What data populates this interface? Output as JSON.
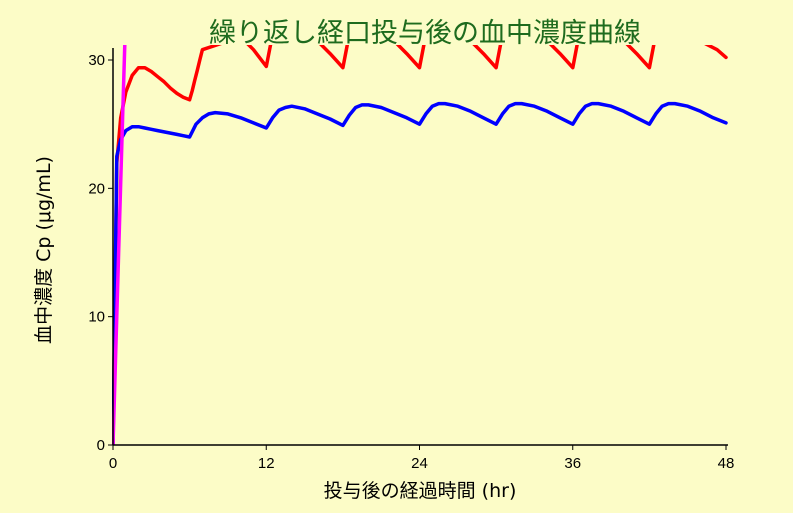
{
  "chart_data": {
    "type": "line",
    "title": "繰り返し経口投与後の血中濃度曲線",
    "xlabel": "投与後の経過時間 (hr)",
    "ylabel": "血中濃度 Cp (μg/mL)",
    "xlim": [
      0,
      48
    ],
    "ylim": [
      0,
      30
    ],
    "x_ticks": [
      "0",
      "12",
      "24",
      "36",
      "48"
    ],
    "y_ticks": [
      "0",
      "10",
      "20",
      "30"
    ],
    "grid": false,
    "series": [
      {
        "color": "#ff0000",
        "x": [
          0,
          0.3,
          0.6,
          1.0,
          1.5,
          2.0,
          2.5,
          3.0,
          3.5,
          4.0,
          4.5,
          5.0,
          5.5,
          6.0,
          6.2,
          6.4,
          6.6,
          6.8,
          7.0,
          10.0,
          11.0,
          12.0,
          12.5,
          13.0,
          16.0,
          17.0,
          18.0,
          18.5,
          19.0,
          22.0,
          23.0,
          24.0,
          24.5,
          25.0,
          28.0,
          29.0,
          30.0,
          30.5,
          31.0,
          34.0,
          35.0,
          36.0,
          36.5,
          37.0,
          40.0,
          41.0,
          42.0,
          42.5,
          43.0,
          47.3,
          48.0
        ],
        "y": [
          0,
          22.0,
          25.5,
          27.5,
          28.8,
          29.4,
          29.4,
          29.1,
          28.7,
          28.3,
          27.8,
          27.4,
          27.1,
          26.9,
          27.6,
          28.4,
          29.2,
          30.0,
          30.8,
          31.8,
          30.8,
          29.5,
          32.0,
          33.0,
          31.5,
          30.5,
          29.4,
          32.0,
          33.0,
          31.5,
          30.5,
          29.4,
          32.0,
          33.0,
          31.5,
          30.5,
          29.4,
          32.0,
          33.0,
          31.5,
          30.5,
          29.4,
          32.0,
          33.0,
          31.5,
          30.5,
          29.4,
          32.0,
          33.0,
          30.8,
          30.2
        ]
      },
      {
        "color": "#0000ff",
        "x": [
          0,
          0.3,
          0.6,
          1.0,
          1.5,
          2.0,
          2.5,
          3.0,
          3.5,
          4.0,
          4.5,
          5.0,
          5.5,
          6.0,
          6.5,
          7.0,
          7.5,
          8.0,
          9.0,
          10.0,
          11.0,
          12.0,
          12.5,
          13.0,
          13.5,
          14.0,
          15.0,
          16.0,
          17.0,
          18.0,
          18.5,
          19.0,
          19.5,
          20.0,
          21.0,
          22.0,
          23.0,
          24.0,
          24.5,
          25.0,
          25.5,
          26.0,
          27.0,
          28.0,
          29.0,
          30.0,
          30.5,
          31.0,
          31.5,
          32.0,
          33.0,
          34.0,
          35.0,
          36.0,
          36.5,
          37.0,
          37.5,
          38.0,
          39.0,
          40.0,
          41.0,
          42.0,
          42.5,
          43.0,
          43.5,
          44.0,
          45.0,
          46.0,
          47.0,
          48.0
        ],
        "y": [
          0,
          22.5,
          23.8,
          24.5,
          24.8,
          24.8,
          24.7,
          24.6,
          24.5,
          24.4,
          24.3,
          24.2,
          24.1,
          24.0,
          25.0,
          25.5,
          25.8,
          25.9,
          25.8,
          25.5,
          25.1,
          24.7,
          25.5,
          26.1,
          26.3,
          26.4,
          26.2,
          25.8,
          25.4,
          24.9,
          25.7,
          26.3,
          26.5,
          26.5,
          26.3,
          25.9,
          25.5,
          25.0,
          25.8,
          26.4,
          26.6,
          26.6,
          26.4,
          26.0,
          25.5,
          25.0,
          25.8,
          26.4,
          26.6,
          26.6,
          26.4,
          26.0,
          25.5,
          25.0,
          25.8,
          26.4,
          26.6,
          26.6,
          26.4,
          26.0,
          25.5,
          25.0,
          25.8,
          26.4,
          26.6,
          26.6,
          26.4,
          26.0,
          25.5,
          25.1
        ]
      },
      {
        "color": "#ff00ff",
        "x": [
          0,
          0.25,
          0.5,
          0.75,
          0.95
        ],
        "y": [
          0,
          8.5,
          17.0,
          25.5,
          32.0
        ]
      }
    ]
  }
}
